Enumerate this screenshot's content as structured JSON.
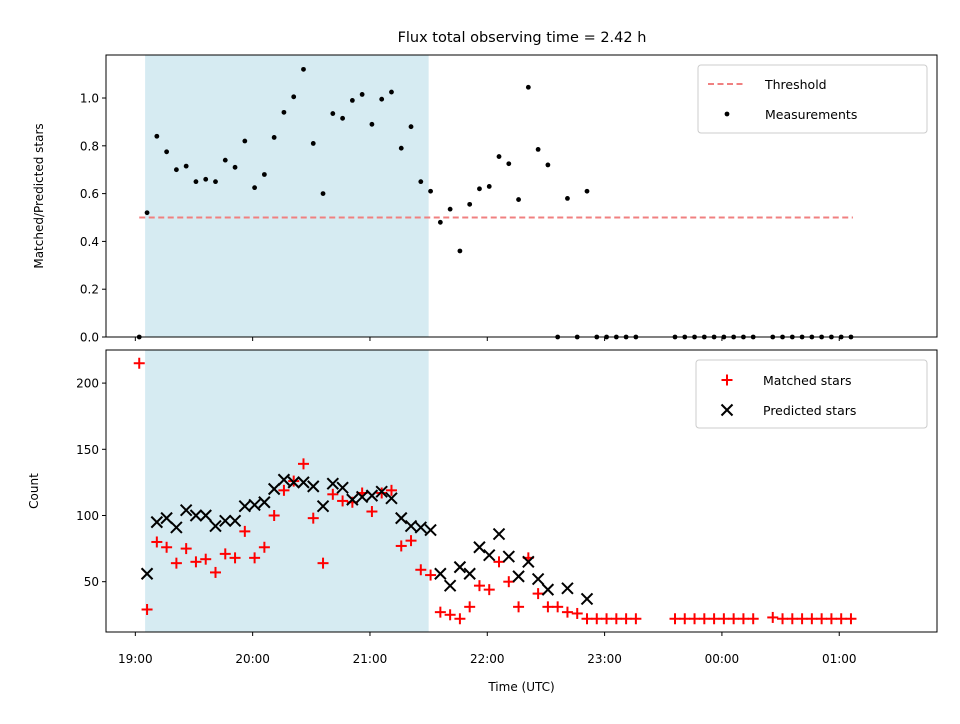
{
  "chart_data": {
    "type": "scatter",
    "title": "Flux total observing time = 2.42 h",
    "x_axis": {
      "label": "Time (UTC)",
      "range": [
        "18:45",
        "01:50"
      ],
      "tick_labels": [
        "19:00",
        "20:00",
        "21:00",
        "22:00",
        "23:00",
        "00:00",
        "01:00"
      ]
    },
    "highlight_span": [
      "19:05",
      "21:30"
    ],
    "panels": [
      {
        "ylabel": "Matched/Predicted stars",
        "ylim": [
          0,
          1.18
        ],
        "yticks": [
          "0.0",
          "0.2",
          "0.4",
          "0.6",
          "0.8",
          "1.0"
        ],
        "legend_position": "top-right",
        "threshold": {
          "name": "Threshold",
          "value": 0.5,
          "x_range": [
            "19:02",
            "01:07"
          ],
          "color": "#f08080"
        },
        "series": [
          {
            "name": "Measurements",
            "marker": "dot",
            "color": "#000000",
            "points": [
              [
                "19:02",
                0.0
              ],
              [
                "19:06",
                0.52
              ],
              [
                "19:11",
                0.84
              ],
              [
                "19:16",
                0.775
              ],
              [
                "19:21",
                0.7
              ],
              [
                "19:26",
                0.715
              ],
              [
                "19:31",
                0.65
              ],
              [
                "19:36",
                0.66
              ],
              [
                "19:41",
                0.65
              ],
              [
                "19:46",
                0.74
              ],
              [
                "19:51",
                0.71
              ],
              [
                "19:56",
                0.82
              ],
              [
                "20:01",
                0.625
              ],
              [
                "20:06",
                0.68
              ],
              [
                "20:11",
                0.835
              ],
              [
                "20:16",
                0.94
              ],
              [
                "20:21",
                1.005
              ],
              [
                "20:26",
                1.12
              ],
              [
                "20:31",
                0.81
              ],
              [
                "20:36",
                0.6
              ],
              [
                "20:41",
                0.935
              ],
              [
                "20:46",
                0.915
              ],
              [
                "20:51",
                0.99
              ],
              [
                "20:56",
                1.015
              ],
              [
                "21:01",
                0.89
              ],
              [
                "21:06",
                0.995
              ],
              [
                "21:11",
                1.025
              ],
              [
                "21:16",
                0.79
              ],
              [
                "21:21",
                0.88
              ],
              [
                "21:26",
                0.65
              ],
              [
                "21:31",
                0.61
              ],
              [
                "21:36",
                0.48
              ],
              [
                "21:41",
                0.535
              ],
              [
                "21:46",
                0.36
              ],
              [
                "21:51",
                0.555
              ],
              [
                "21:56",
                0.62
              ],
              [
                "22:01",
                0.63
              ],
              [
                "22:06",
                0.755
              ],
              [
                "22:11",
                0.725
              ],
              [
                "22:16",
                0.575
              ],
              [
                "22:21",
                1.045
              ],
              [
                "22:26",
                0.785
              ],
              [
                "22:31",
                0.72
              ],
              [
                "22:36",
                0.0
              ],
              [
                "22:41",
                0.58
              ],
              [
                "22:46",
                0.0
              ],
              [
                "22:51",
                0.61
              ],
              [
                "22:56",
                0.0
              ],
              [
                "23:01",
                0.0
              ],
              [
                "23:06",
                0.0
              ],
              [
                "23:11",
                0.0
              ],
              [
                "23:16",
                0.0
              ],
              [
                "23:36",
                0.0
              ],
              [
                "23:41",
                0.0
              ],
              [
                "23:46",
                0.0
              ],
              [
                "23:51",
                0.0
              ],
              [
                "23:56",
                0.0
              ],
              [
                "00:01",
                0.0
              ],
              [
                "00:06",
                0.0
              ],
              [
                "00:11",
                0.0
              ],
              [
                "00:16",
                0.0
              ],
              [
                "00:26",
                0.0
              ],
              [
                "00:31",
                0.0
              ],
              [
                "00:36",
                0.0
              ],
              [
                "00:41",
                0.0
              ],
              [
                "00:46",
                0.0
              ],
              [
                "00:51",
                0.0
              ],
              [
                "00:56",
                0.0
              ],
              [
                "01:01",
                0.0
              ],
              [
                "01:06",
                0.0
              ]
            ]
          }
        ]
      },
      {
        "ylabel": "Count",
        "ylim": [
          12,
          225
        ],
        "yticks": [
          "50",
          "100",
          "150",
          "200"
        ],
        "legend_position": "top-right",
        "series": [
          {
            "name": "Matched stars",
            "marker": "plus",
            "color": "#ff0000",
            "points": [
              [
                "19:02",
                215
              ],
              [
                "19:06",
                29
              ],
              [
                "19:11",
                80
              ],
              [
                "19:16",
                76
              ],
              [
                "19:21",
                64
              ],
              [
                "19:26",
                75
              ],
              [
                "19:31",
                65
              ],
              [
                "19:36",
                67
              ],
              [
                "19:41",
                57
              ],
              [
                "19:46",
                71
              ],
              [
                "19:51",
                68
              ],
              [
                "19:56",
                88
              ],
              [
                "20:01",
                68
              ],
              [
                "20:06",
                76
              ],
              [
                "20:11",
                100
              ],
              [
                "20:16",
                119
              ],
              [
                "20:21",
                126
              ],
              [
                "20:26",
                139
              ],
              [
                "20:31",
                98
              ],
              [
                "20:36",
                64
              ],
              [
                "20:41",
                116
              ],
              [
                "20:46",
                111
              ],
              [
                "20:51",
                110
              ],
              [
                "20:56",
                117
              ],
              [
                "21:01",
                103
              ],
              [
                "21:06",
                117
              ],
              [
                "21:11",
                119
              ],
              [
                "21:16",
                77
              ],
              [
                "21:21",
                81
              ],
              [
                "21:26",
                59
              ],
              [
                "21:31",
                55
              ],
              [
                "21:36",
                27
              ],
              [
                "21:41",
                25
              ],
              [
                "21:46",
                22
              ],
              [
                "21:51",
                31
              ],
              [
                "21:56",
                47
              ],
              [
                "22:01",
                44
              ],
              [
                "22:06",
                65
              ],
              [
                "22:11",
                50
              ],
              [
                "22:16",
                31
              ],
              [
                "22:21",
                68
              ],
              [
                "22:26",
                41
              ],
              [
                "22:31",
                31
              ],
              [
                "22:36",
                31
              ],
              [
                "22:41",
                27
              ],
              [
                "22:46",
                26
              ],
              [
                "22:51",
                22
              ],
              [
                "22:56",
                22
              ],
              [
                "23:01",
                22
              ],
              [
                "23:06",
                22
              ],
              [
                "23:11",
                22
              ],
              [
                "23:16",
                22
              ],
              [
                "23:36",
                22
              ],
              [
                "23:41",
                22
              ],
              [
                "23:46",
                22
              ],
              [
                "23:51",
                22
              ],
              [
                "23:56",
                22
              ],
              [
                "00:01",
                22
              ],
              [
                "00:06",
                22
              ],
              [
                "00:11",
                22
              ],
              [
                "00:16",
                22
              ],
              [
                "00:26",
                23
              ],
              [
                "00:31",
                22
              ],
              [
                "00:36",
                22
              ],
              [
                "00:41",
                22
              ],
              [
                "00:46",
                22
              ],
              [
                "00:51",
                22
              ],
              [
                "00:56",
                22
              ],
              [
                "01:01",
                22
              ],
              [
                "01:06",
                22
              ]
            ]
          },
          {
            "name": "Predicted stars",
            "marker": "x",
            "color": "#000000",
            "points": [
              [
                "19:06",
                56
              ],
              [
                "19:11",
                95
              ],
              [
                "19:16",
                98
              ],
              [
                "19:21",
                91
              ],
              [
                "19:26",
                104
              ],
              [
                "19:31",
                100
              ],
              [
                "19:36",
                100
              ],
              [
                "19:41",
                92
              ],
              [
                "19:46",
                96
              ],
              [
                "19:51",
                96
              ],
              [
                "19:56",
                107
              ],
              [
                "20:01",
                108
              ],
              [
                "20:06",
                110
              ],
              [
                "20:11",
                120
              ],
              [
                "20:16",
                127
              ],
              [
                "20:21",
                125
              ],
              [
                "20:26",
                125
              ],
              [
                "20:31",
                122
              ],
              [
                "20:36",
                107
              ],
              [
                "20:41",
                124
              ],
              [
                "20:46",
                121
              ],
              [
                "20:51",
                112
              ],
              [
                "20:56",
                114
              ],
              [
                "21:01",
                115
              ],
              [
                "21:06",
                118
              ],
              [
                "21:11",
                113
              ],
              [
                "21:16",
                98
              ],
              [
                "21:21",
                92
              ],
              [
                "21:26",
                91
              ],
              [
                "21:31",
                89
              ],
              [
                "21:36",
                56
              ],
              [
                "21:41",
                47
              ],
              [
                "21:46",
                61
              ],
              [
                "21:51",
                56
              ],
              [
                "21:56",
                76
              ],
              [
                "22:01",
                70
              ],
              [
                "22:06",
                86
              ],
              [
                "22:11",
                69
              ],
              [
                "22:16",
                54
              ],
              [
                "22:21",
                65
              ],
              [
                "22:26",
                52
              ],
              [
                "22:31",
                44
              ],
              [
                "22:41",
                45
              ],
              [
                "22:51",
                37
              ]
            ]
          }
        ]
      }
    ]
  }
}
